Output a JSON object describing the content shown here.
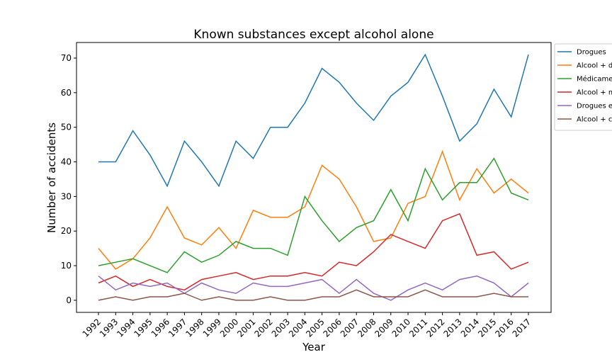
{
  "chart_data": {
    "type": "line",
    "title": "Known substances except alcohol alone",
    "xlabel": "Year",
    "ylabel": "Number of accidents",
    "ylim": [
      -3.5,
      74.5
    ],
    "yticks": [
      0,
      10,
      20,
      30,
      40,
      50,
      60,
      70
    ],
    "grid": false,
    "legend_position": "right",
    "x": [
      "1992",
      "1993",
      "1994",
      "1995",
      "1996",
      "1997",
      "1998",
      "1999",
      "2000",
      "2001",
      "2002",
      "2003",
      "2004",
      "2005",
      "2006",
      "2007",
      "2008",
      "2009",
      "2010",
      "2011",
      "2012",
      "2013",
      "2014",
      "2015",
      "2016",
      "2017"
    ],
    "series": [
      {
        "name": "Drogues",
        "color": "#1f77b4",
        "values": [
          40,
          40,
          49,
          42,
          33,
          46,
          40,
          33,
          46,
          41,
          50,
          50,
          57,
          67,
          63,
          57,
          52,
          59,
          63,
          71,
          59,
          46,
          51,
          61,
          53,
          71
        ]
      },
      {
        "name": "Alcool + d",
        "color": "#ff7f0e",
        "values": [
          15,
          9,
          12,
          18,
          27,
          18,
          16,
          21,
          15,
          26,
          24,
          24,
          27,
          39,
          35,
          27,
          17,
          18,
          28,
          30,
          43,
          29,
          38,
          31,
          35,
          31
        ]
      },
      {
        "name": "Médicame",
        "color": "#2ca02c",
        "values": [
          10,
          11,
          12,
          10,
          8,
          14,
          11,
          13,
          17,
          15,
          15,
          13,
          30,
          23,
          17,
          21,
          23,
          32,
          23,
          38,
          29,
          34,
          34,
          41,
          31,
          29
        ]
      },
      {
        "name": "Alcool + m",
        "color": "#d62728",
        "values": [
          5,
          7,
          4,
          6,
          4,
          3,
          6,
          7,
          8,
          6,
          7,
          7,
          8,
          7,
          11,
          10,
          14,
          19,
          17,
          15,
          23,
          25,
          13,
          14,
          9,
          11
        ]
      },
      {
        "name": "Drogues e",
        "color": "#9467bd",
        "values": [
          7,
          3,
          5,
          4,
          5,
          2,
          5,
          3,
          2,
          5,
          4,
          4,
          5,
          6,
          2,
          6,
          2,
          0,
          3,
          5,
          3,
          6,
          7,
          5,
          1,
          5
        ]
      },
      {
        "name": "Alcool + c",
        "color": "#8c564b",
        "values": [
          0,
          1,
          0,
          1,
          1,
          2,
          0,
          1,
          0,
          0,
          1,
          0,
          0,
          1,
          1,
          3,
          1,
          1,
          1,
          3,
          1,
          1,
          1,
          2,
          1,
          1
        ]
      }
    ]
  }
}
